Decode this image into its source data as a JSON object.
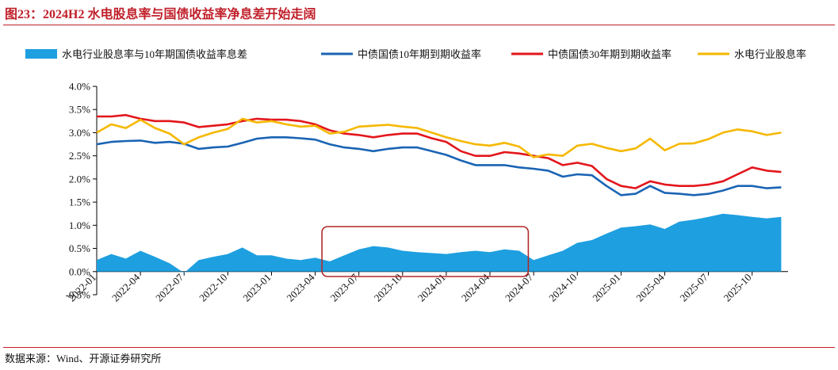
{
  "title": "图23：2024H2 水电股息率与国债收益率净息差开始走阔",
  "source": "数据来源：Wind、开源证券研究所",
  "chart_data": {
    "type": "line",
    "ylim": [
      -0.005,
      0.04
    ],
    "yticks": [
      -0.005,
      0.0,
      0.005,
      0.01,
      0.015,
      0.02,
      0.025,
      0.03,
      0.035,
      0.04
    ],
    "ytick_labels": [
      "-0.5%",
      "0.0%",
      "0.5%",
      "1.0%",
      "1.5%",
      "2.0%",
      "2.5%",
      "3.0%",
      "3.5%",
      "4.0%"
    ],
    "xlim": [
      "2022-01",
      "2025-12-15"
    ],
    "xtick_labels": [
      "2022-01",
      "2022-04",
      "2022-07",
      "2022-10",
      "2023-01",
      "2023-04",
      "2023-07",
      "2023-10",
      "2024-01",
      "2024-04",
      "2024-07",
      "2024-10",
      "2025-01",
      "2025-04",
      "2025-07",
      "2025-10"
    ],
    "legend_position": "top",
    "series": [
      {
        "name": "水电行业股息率与10年期国债收益率息差",
        "type": "area",
        "color": "#1e9fe0",
        "x": [
          "2022-01",
          "2022-02",
          "2022-03",
          "2022-04",
          "2022-05",
          "2022-06",
          "2022-07",
          "2022-08",
          "2022-09",
          "2022-10",
          "2022-11",
          "2022-12",
          "2023-01",
          "2023-02",
          "2023-03",
          "2023-04",
          "2023-05",
          "2023-06",
          "2023-07",
          "2023-08",
          "2023-09",
          "2023-10",
          "2023-11",
          "2023-12",
          "2024-01",
          "2024-02",
          "2024-03",
          "2024-04",
          "2024-05",
          "2024-06",
          "2024-07",
          "2024-08",
          "2024-09",
          "2024-10",
          "2024-11",
          "2024-12",
          "2025-01",
          "2025-02",
          "2025-03",
          "2025-04",
          "2025-05",
          "2025-06",
          "2025-07",
          "2025-08",
          "2025-09",
          "2025-10",
          "2025-11",
          "2025-12"
        ],
        "y": [
          0.0025,
          0.0038,
          0.0028,
          0.0045,
          0.0032,
          0.0018,
          -0.0003,
          0.0025,
          0.0032,
          0.0038,
          0.0052,
          0.0035,
          0.0035,
          0.0028,
          0.0025,
          0.003,
          0.0022,
          0.0035,
          0.0048,
          0.0055,
          0.0052,
          0.0045,
          0.0042,
          0.004,
          0.0038,
          0.0042,
          0.0045,
          0.0042,
          0.0048,
          0.0045,
          0.0025,
          0.0035,
          0.0045,
          0.0062,
          0.0068,
          0.0082,
          0.0095,
          0.0098,
          0.0102,
          0.0092,
          0.0108,
          0.0112,
          0.0118,
          0.0125,
          0.0122,
          0.0118,
          0.0115,
          0.0118
        ]
      },
      {
        "name": "中债国债10年期到期收益率",
        "type": "line",
        "color": "#1a64b4",
        "x": [
          "2022-01",
          "2022-02",
          "2022-03",
          "2022-04",
          "2022-05",
          "2022-06",
          "2022-07",
          "2022-08",
          "2022-09",
          "2022-10",
          "2022-11",
          "2022-12",
          "2023-01",
          "2023-02",
          "2023-03",
          "2023-04",
          "2023-05",
          "2023-06",
          "2023-07",
          "2023-08",
          "2023-09",
          "2023-10",
          "2023-11",
          "2023-12",
          "2024-01",
          "2024-02",
          "2024-03",
          "2024-04",
          "2024-05",
          "2024-06",
          "2024-07",
          "2024-08",
          "2024-09",
          "2024-10",
          "2024-11",
          "2024-12",
          "2025-01",
          "2025-02",
          "2025-03",
          "2025-04",
          "2025-05",
          "2025-06",
          "2025-07",
          "2025-08",
          "2025-09",
          "2025-10",
          "2025-11",
          "2025-12"
        ],
        "y": [
          0.0275,
          0.028,
          0.0282,
          0.0283,
          0.0278,
          0.028,
          0.0276,
          0.0265,
          0.0268,
          0.027,
          0.0278,
          0.0287,
          0.029,
          0.029,
          0.0288,
          0.0285,
          0.0275,
          0.0268,
          0.0265,
          0.026,
          0.0265,
          0.0268,
          0.0268,
          0.026,
          0.0252,
          0.024,
          0.023,
          0.023,
          0.023,
          0.0225,
          0.0222,
          0.0218,
          0.0205,
          0.021,
          0.0208,
          0.0185,
          0.0165,
          0.0168,
          0.0185,
          0.017,
          0.0168,
          0.0165,
          0.0168,
          0.0175,
          0.0185,
          0.0185,
          0.018,
          0.0182
        ]
      },
      {
        "name": "中债国债30年期到期收益率",
        "type": "line",
        "color": "#e3161c",
        "x": [
          "2022-01",
          "2022-02",
          "2022-03",
          "2022-04",
          "2022-05",
          "2022-06",
          "2022-07",
          "2022-08",
          "2022-09",
          "2022-10",
          "2022-11",
          "2022-12",
          "2023-01",
          "2023-02",
          "2023-03",
          "2023-04",
          "2023-05",
          "2023-06",
          "2023-07",
          "2023-08",
          "2023-09",
          "2023-10",
          "2023-11",
          "2023-12",
          "2024-01",
          "2024-02",
          "2024-03",
          "2024-04",
          "2024-05",
          "2024-06",
          "2024-07",
          "2024-08",
          "2024-09",
          "2024-10",
          "2024-11",
          "2024-12",
          "2025-01",
          "2025-02",
          "2025-03",
          "2025-04",
          "2025-05",
          "2025-06",
          "2025-07",
          "2025-08",
          "2025-09",
          "2025-10",
          "2025-11",
          "2025-12"
        ],
        "y": [
          0.0335,
          0.0335,
          0.0338,
          0.033,
          0.0325,
          0.0325,
          0.0322,
          0.0312,
          0.0315,
          0.0318,
          0.0325,
          0.033,
          0.0328,
          0.0328,
          0.0325,
          0.0318,
          0.0305,
          0.0298,
          0.0295,
          0.029,
          0.0295,
          0.0298,
          0.0298,
          0.0288,
          0.028,
          0.026,
          0.025,
          0.025,
          0.0258,
          0.0255,
          0.025,
          0.0245,
          0.023,
          0.0235,
          0.0228,
          0.02,
          0.0185,
          0.018,
          0.0195,
          0.0188,
          0.0185,
          0.0185,
          0.0188,
          0.0195,
          0.021,
          0.0225,
          0.0218,
          0.0215
        ]
      },
      {
        "name": "水电行业股息率",
        "type": "line",
        "color": "#f5b800",
        "x": [
          "2022-01",
          "2022-02",
          "2022-03",
          "2022-04",
          "2022-05",
          "2022-06",
          "2022-07",
          "2022-08",
          "2022-09",
          "2022-10",
          "2022-11",
          "2022-12",
          "2023-01",
          "2023-02",
          "2023-03",
          "2023-04",
          "2023-05",
          "2023-06",
          "2023-07",
          "2023-08",
          "2023-09",
          "2023-10",
          "2023-11",
          "2023-12",
          "2024-01",
          "2024-02",
          "2024-03",
          "2024-04",
          "2024-05",
          "2024-06",
          "2024-07",
          "2024-08",
          "2024-09",
          "2024-10",
          "2024-11",
          "2024-12",
          "2025-01",
          "2025-02",
          "2025-03",
          "2025-04",
          "2025-05",
          "2025-06",
          "2025-07",
          "2025-08",
          "2025-09",
          "2025-10",
          "2025-11",
          "2025-12"
        ],
        "y": [
          0.03,
          0.0318,
          0.031,
          0.0328,
          0.031,
          0.0298,
          0.0275,
          0.029,
          0.03,
          0.0308,
          0.033,
          0.0322,
          0.0325,
          0.0318,
          0.0313,
          0.0315,
          0.0298,
          0.0302,
          0.0313,
          0.0315,
          0.0317,
          0.0313,
          0.031,
          0.03,
          0.029,
          0.0282,
          0.0275,
          0.0272,
          0.0278,
          0.027,
          0.0247,
          0.0253,
          0.025,
          0.0272,
          0.0276,
          0.0267,
          0.026,
          0.0266,
          0.0287,
          0.0262,
          0.0276,
          0.0277,
          0.0286,
          0.03,
          0.0307,
          0.0303,
          0.0295,
          0.03
        ]
      }
    ]
  }
}
